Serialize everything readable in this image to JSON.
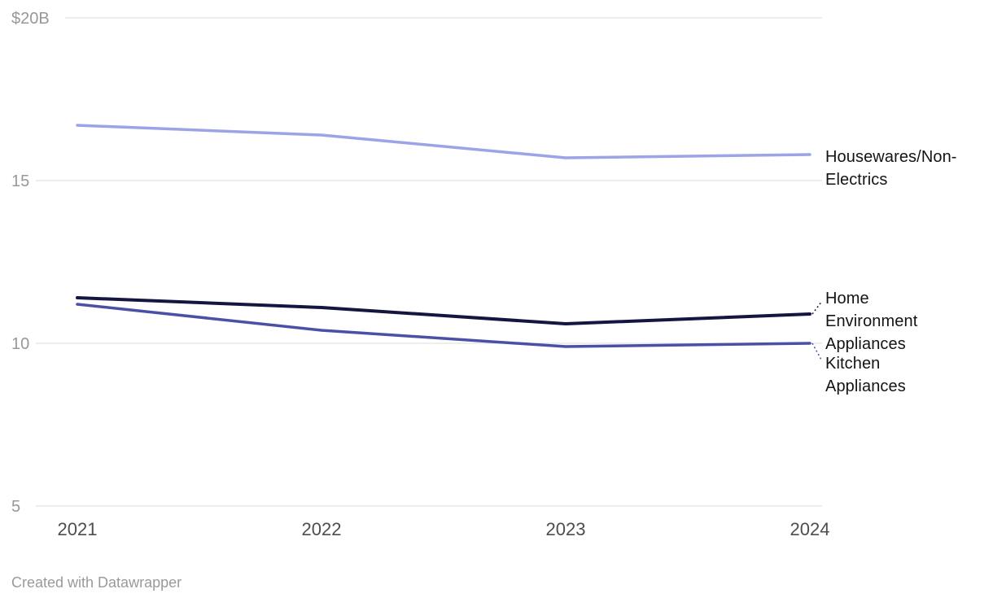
{
  "chart": {
    "footer": "Created with Datawrapper"
  },
  "chart_data": {
    "type": "line",
    "title": "",
    "xlabel": "",
    "ylabel": "",
    "x": [
      "2021",
      "2022",
      "2023",
      "2024"
    ],
    "series": [
      {
        "name": "Housewares/Non-Electrics",
        "values": [
          16.7,
          16.4,
          15.7,
          15.8
        ],
        "color": "#9ba4e6",
        "width": 3.5
      },
      {
        "name": "Home Environment Appliances",
        "values": [
          11.4,
          11.1,
          10.6,
          10.9
        ],
        "color": "#15163f",
        "width": 4
      },
      {
        "name": "Kitchen Appliances",
        "values": [
          11.2,
          10.4,
          9.9,
          10.0
        ],
        "color": "#4a50a5",
        "width": 3.5
      }
    ],
    "ylim": [
      5,
      20
    ],
    "yticks": [
      5,
      10,
      15,
      20
    ],
    "ytick_labels": [
      "5",
      "10",
      "15",
      "$20B"
    ],
    "grid": true,
    "legend_position": "right-direct-labels"
  },
  "colors": {
    "grid": "#dddddd",
    "ytick_text": "#989898",
    "xtick_text": "#4d4d4d",
    "label_text": "#141414",
    "footer_text": "#9a9a9a"
  }
}
